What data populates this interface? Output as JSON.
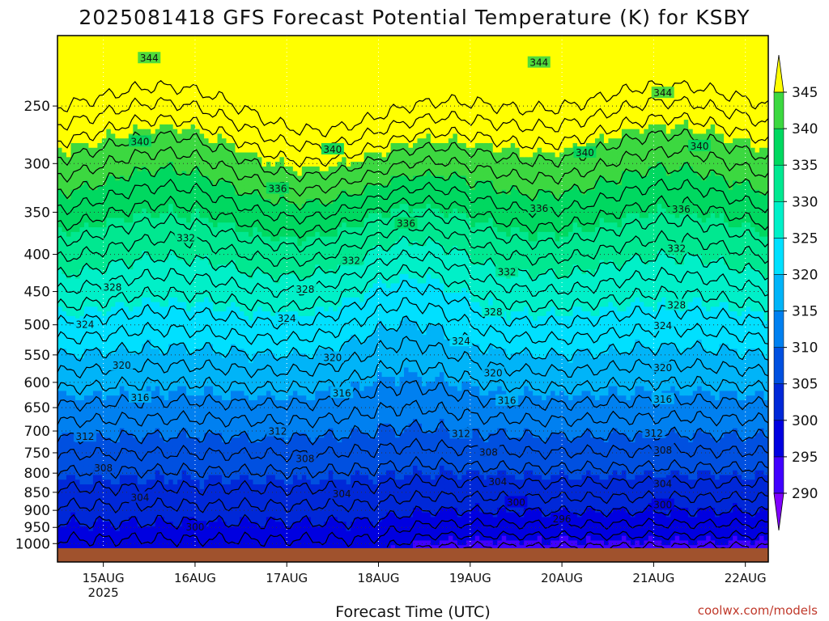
{
  "chart_data": {
    "type": "heatmap",
    "subtype": "time-height contour cross-section",
    "title": "2025081418 GFS Forecast Potential Temperature (K) for KSBY",
    "xlabel": "Forecast Time (UTC)",
    "ylabel": "",
    "credit": "coolwx.com/models",
    "x_ticks": [
      "15AUG",
      "16AUG",
      "17AUG",
      "18AUG",
      "19AUG",
      "20AUG",
      "21AUG",
      "22AUG"
    ],
    "x_year": "2025",
    "x_tick_days": [
      15,
      16,
      17,
      18,
      19,
      20,
      21,
      22
    ],
    "xlim_days": [
      14.5,
      22.25
    ],
    "y_ticks": [
      250,
      300,
      350,
      400,
      450,
      500,
      550,
      600,
      650,
      700,
      750,
      800,
      850,
      900,
      950,
      1000
    ],
    "ylim_hpa": [
      200,
      1020
    ],
    "y_scale": "log-pressure, inverted",
    "grid": "dotted",
    "colorbar": {
      "ticks": [
        345,
        340,
        335,
        330,
        325,
        320,
        315,
        310,
        305,
        300,
        295,
        290
      ],
      "levels": [
        290,
        295,
        300,
        305,
        310,
        315,
        320,
        325,
        330,
        335,
        340,
        345
      ],
      "colors": [
        "#7f00ff",
        "#4000ff",
        "#0000e0",
        "#0028d8",
        "#0050e0",
        "#0080f0",
        "#00b4f8",
        "#00e0ff",
        "#00f0c8",
        "#00e890",
        "#00d860",
        "#3cd840",
        "#80e020",
        "#c0f000",
        "#ffff00"
      ],
      "extend": "both",
      "placement": "right"
    },
    "contour_interval": 2,
    "contour_labels": [
      {
        "value": 344,
        "day": 15.5,
        "p": 215
      },
      {
        "value": 344,
        "day": 19.75,
        "p": 218
      },
      {
        "value": 344,
        "day": 21.1,
        "p": 240
      },
      {
        "value": 340,
        "day": 15.4,
        "p": 280
      },
      {
        "value": 340,
        "day": 17.5,
        "p": 287
      },
      {
        "value": 340,
        "day": 20.25,
        "p": 290
      },
      {
        "value": 340,
        "day": 21.5,
        "p": 284
      },
      {
        "value": 336,
        "day": 16.9,
        "p": 325
      },
      {
        "value": 336,
        "day": 18.3,
        "p": 363
      },
      {
        "value": 336,
        "day": 19.75,
        "p": 346
      },
      {
        "value": 336,
        "day": 21.3,
        "p": 347
      },
      {
        "value": 332,
        "day": 15.9,
        "p": 380
      },
      {
        "value": 332,
        "day": 17.7,
        "p": 408
      },
      {
        "value": 332,
        "day": 19.4,
        "p": 423
      },
      {
        "value": 332,
        "day": 21.25,
        "p": 393
      },
      {
        "value": 328,
        "day": 15.1,
        "p": 444
      },
      {
        "value": 328,
        "day": 17.2,
        "p": 447
      },
      {
        "value": 328,
        "day": 19.25,
        "p": 480
      },
      {
        "value": 328,
        "day": 21.25,
        "p": 470
      },
      {
        "value": 324,
        "day": 14.8,
        "p": 500
      },
      {
        "value": 324,
        "day": 17.0,
        "p": 490
      },
      {
        "value": 324,
        "day": 18.9,
        "p": 527
      },
      {
        "value": 324,
        "day": 21.1,
        "p": 502
      },
      {
        "value": 320,
        "day": 15.2,
        "p": 569
      },
      {
        "value": 320,
        "day": 17.5,
        "p": 555
      },
      {
        "value": 320,
        "day": 19.25,
        "p": 583
      },
      {
        "value": 320,
        "day": 21.1,
        "p": 573
      },
      {
        "value": 316,
        "day": 15.4,
        "p": 630
      },
      {
        "value": 316,
        "day": 17.6,
        "p": 621
      },
      {
        "value": 316,
        "day": 19.4,
        "p": 636
      },
      {
        "value": 316,
        "day": 21.1,
        "p": 633
      },
      {
        "value": 312,
        "day": 14.8,
        "p": 713
      },
      {
        "value": 312,
        "day": 16.9,
        "p": 701
      },
      {
        "value": 312,
        "day": 18.9,
        "p": 706
      },
      {
        "value": 312,
        "day": 21.0,
        "p": 705
      },
      {
        "value": 308,
        "day": 15.0,
        "p": 787
      },
      {
        "value": 308,
        "day": 17.2,
        "p": 765
      },
      {
        "value": 308,
        "day": 19.2,
        "p": 749
      },
      {
        "value": 308,
        "day": 21.1,
        "p": 744
      },
      {
        "value": 304,
        "day": 15.4,
        "p": 865
      },
      {
        "value": 304,
        "day": 17.6,
        "p": 855
      },
      {
        "value": 304,
        "day": 19.3,
        "p": 822
      },
      {
        "value": 304,
        "day": 21.1,
        "p": 828
      },
      {
        "value": 300,
        "day": 16.0,
        "p": 950
      },
      {
        "value": 300,
        "day": 19.5,
        "p": 878
      },
      {
        "value": 300,
        "day": 21.1,
        "p": 885
      },
      {
        "value": 296,
        "day": 20.0,
        "p": 925
      }
    ]
  }
}
